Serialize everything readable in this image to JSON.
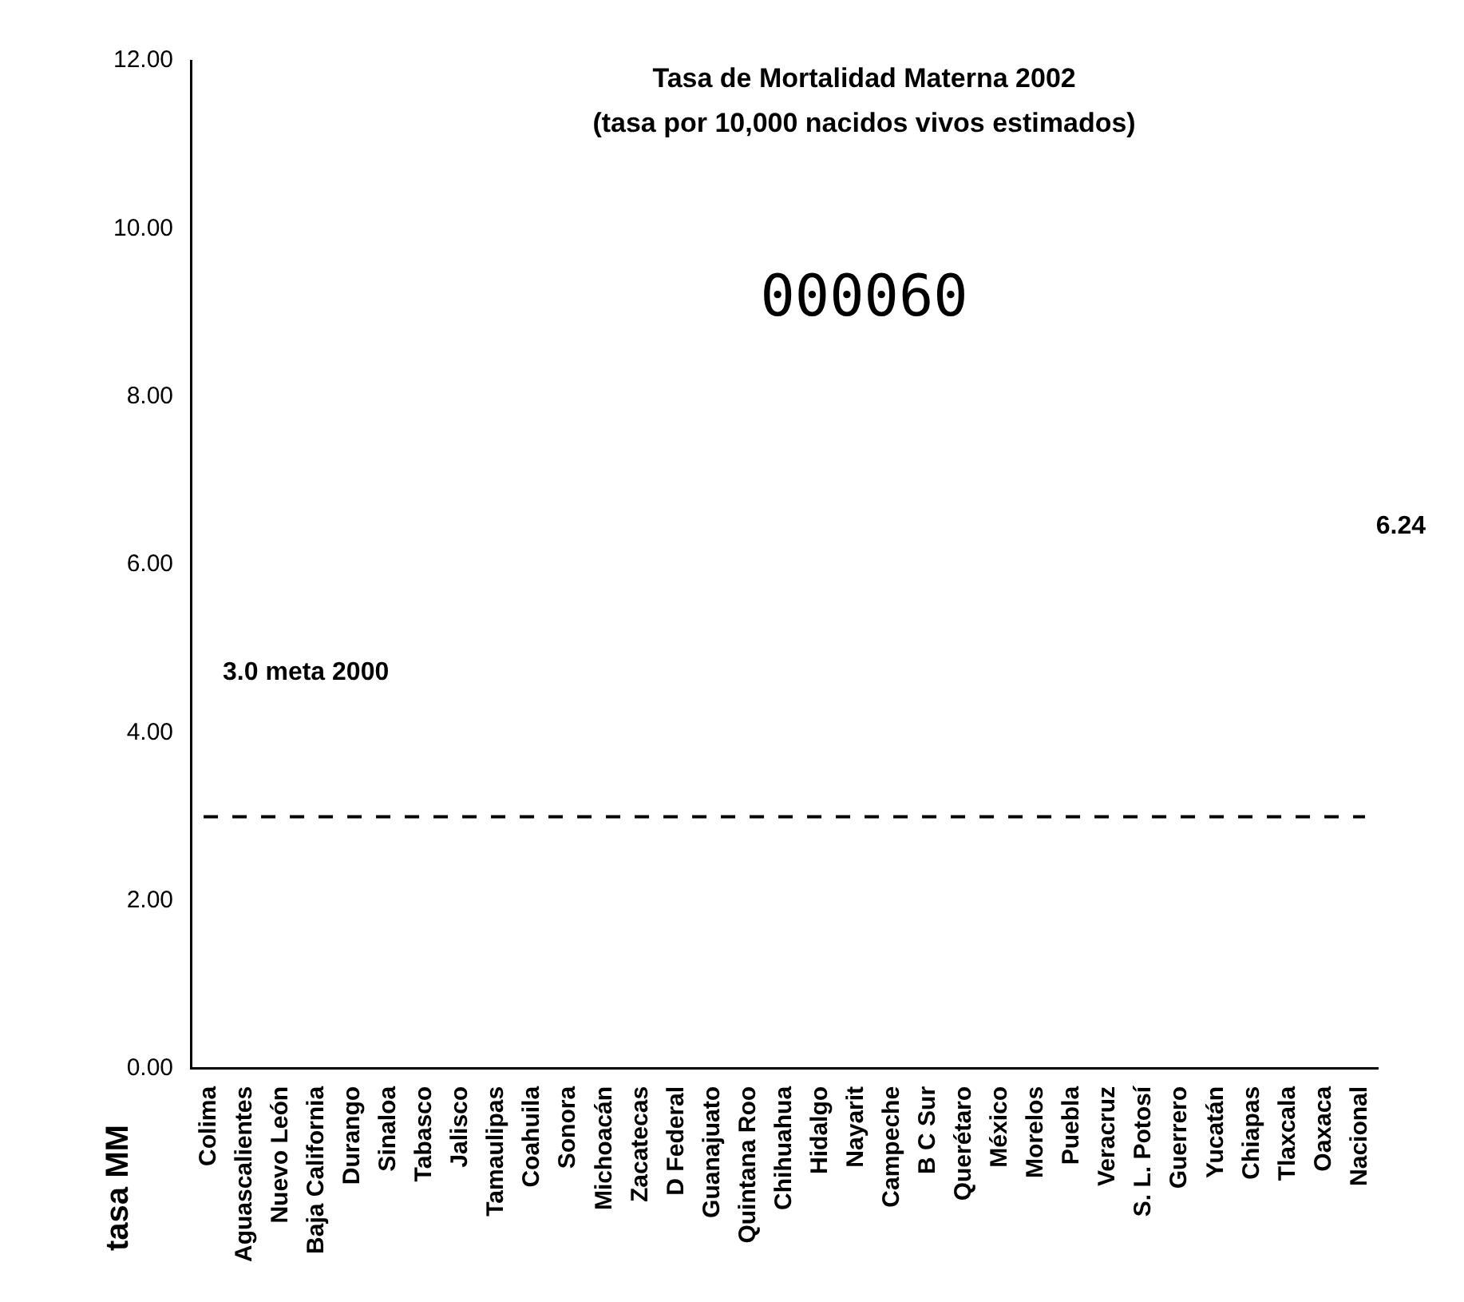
{
  "chart_data": {
    "type": "bar",
    "title": "Tasa de Mortalidad Materna 2002",
    "subtitle": "(tasa por 10,000 nacidos vivos estimados)",
    "ylabel": "tasa MM",
    "categories": [
      "Colima",
      "Aguascalientes",
      "Nuevo León",
      "Baja California",
      "Durango",
      "Sinaloa",
      "Tabasco",
      "Jalisco",
      "Tamaulipas",
      "Coahuila",
      "Sonora",
      "Michoacán",
      "Zacatecas",
      "D Federal",
      "Guanajuato",
      "Quintana Roo",
      "Chihuahua",
      "Hidalgo",
      "Nayarit",
      "Campeche",
      "B C Sur",
      "Querétaro",
      "México",
      "Morelos",
      "Puebla",
      "Veracruz",
      "S. L. Potosí",
      "Guerrero",
      "Yucatán",
      "Chiapas",
      "Tlaxcala",
      "Oaxaca",
      "Nacional"
    ],
    "values": [
      null,
      null,
      null,
      null,
      null,
      null,
      null,
      null,
      null,
      null,
      null,
      null,
      null,
      null,
      null,
      null,
      null,
      null,
      null,
      null,
      null,
      null,
      null,
      null,
      null,
      null,
      null,
      null,
      null,
      null,
      null,
      null,
      null
    ],
    "ylim": [
      0,
      12
    ],
    "yticks": [
      {
        "value": 0,
        "label": "0.00"
      },
      {
        "value": 2,
        "label": "2.00"
      },
      {
        "value": 4,
        "label": "4.00"
      },
      {
        "value": 6,
        "label": "6.00"
      },
      {
        "value": 8,
        "label": "8.00"
      },
      {
        "value": 10,
        "label": "10.00"
      },
      {
        "value": 12,
        "label": "12.00"
      }
    ],
    "ref_lines": [
      {
        "axis": "y",
        "value": 3.0,
        "label": "3.0 meta 2000",
        "line_style": "dashed",
        "color": "#000000"
      }
    ],
    "annotations": [
      "6.24",
      "000060"
    ],
    "grid": false,
    "legend": false
  }
}
